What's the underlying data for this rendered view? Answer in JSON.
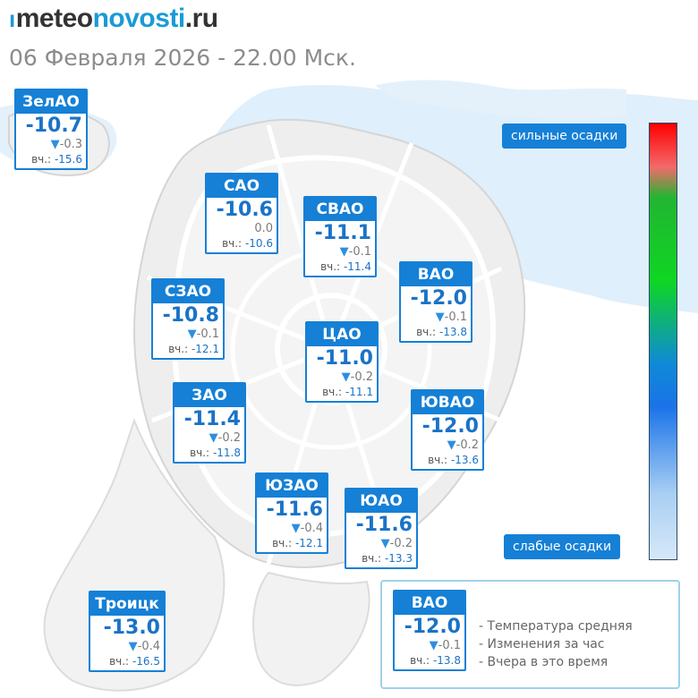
{
  "header": {
    "logo_mark": "ı",
    "logo_part1": "meteo",
    "logo_part2": "novosti",
    "logo_part3": ".ru",
    "datetime": "06 Февраля 2026 - 22.00 Мск."
  },
  "yesterday_label": "вч.:",
  "districts": [
    {
      "name": "ЗелАО",
      "temp": "-10.7",
      "arrow": "▼",
      "delta": "-0.3",
      "yesterday": "-15.6"
    },
    {
      "name": "САО",
      "temp": "-10.6",
      "arrow": "",
      "delta": "0.0",
      "yesterday": "-10.6"
    },
    {
      "name": "СВАО",
      "temp": "-11.1",
      "arrow": "▼",
      "delta": "-0.1",
      "yesterday": "-11.4"
    },
    {
      "name": "ВАО",
      "temp": "-12.0",
      "arrow": "▼",
      "delta": "-0.1",
      "yesterday": "-13.8"
    },
    {
      "name": "СЗАО",
      "temp": "-10.8",
      "arrow": "▼",
      "delta": "-0.1",
      "yesterday": "-12.1"
    },
    {
      "name": "ЦАО",
      "temp": "-11.0",
      "arrow": "▼",
      "delta": "-0.2",
      "yesterday": "-11.1"
    },
    {
      "name": "ЗАО",
      "temp": "-11.4",
      "arrow": "▼",
      "delta": "-0.2",
      "yesterday": "-11.8"
    },
    {
      "name": "ЮВАО",
      "temp": "-12.0",
      "arrow": "▼",
      "delta": "-0.2",
      "yesterday": "-13.6"
    },
    {
      "name": "ЮЗАО",
      "temp": "-11.6",
      "arrow": "▼",
      "delta": "-0.4",
      "yesterday": "-12.1"
    },
    {
      "name": "ЮАО",
      "temp": "-11.6",
      "arrow": "▼",
      "delta": "-0.2",
      "yesterday": "-13.3"
    },
    {
      "name": "Троицк",
      "temp": "-13.0",
      "arrow": "▼",
      "delta": "-0.4",
      "yesterday": "-16.5"
    }
  ],
  "scale": {
    "top_label": "сильные осадки",
    "bottom_label": "слабые осадки",
    "colors": [
      "#ff0000",
      "#22b531",
      "#0f8ad6",
      "#d6e8f8"
    ]
  },
  "legend": {
    "example": {
      "name": "ВАО",
      "temp": "-12.0",
      "arrow": "▼",
      "delta": "-0.1",
      "yesterday": "-13.8"
    },
    "lines": [
      "- Температура средняя",
      "- Изменения за час",
      "- Вчера в это время"
    ]
  },
  "colors": {
    "accent": "#1580d6",
    "temp_text": "#1a73c7",
    "precip_light": "#d9ecfa"
  }
}
